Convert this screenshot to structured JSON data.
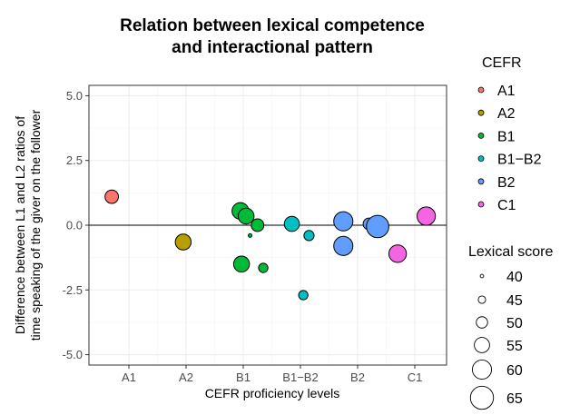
{
  "chart_data": {
    "type": "scatter",
    "title_lines": [
      "Relation between lexical competence",
      "and interactional pattern"
    ],
    "xlabel": "CEFR proficiency levels",
    "ylabel_lines": [
      "Difference between L1 and L2 ratios of",
      "time speaking of the giver on the follower"
    ],
    "categories": [
      "A1",
      "A2",
      "B1",
      "B1−B2",
      "B2",
      "C1"
    ],
    "ylim": [
      -5.4,
      5.4
    ],
    "yticks": [
      5.0,
      2.5,
      0.0,
      -2.5,
      -5.0
    ],
    "ytick_labels": [
      "5.0",
      "2.5",
      "0.0",
      "-2.5",
      "-5.0"
    ],
    "reference_line_y": 0.0,
    "grid": true,
    "legend_position": "right",
    "color_legend": {
      "title": "CEFR",
      "entries": [
        {
          "label": "A1",
          "color": "#F8766D"
        },
        {
          "label": "A2",
          "color": "#B79F00"
        },
        {
          "label": "B1",
          "color": "#00BA38"
        },
        {
          "label": "B1−B2",
          "color": "#00BFC4"
        },
        {
          "label": "B2",
          "color": "#619CFF"
        },
        {
          "label": "C1",
          "color": "#F564E3"
        }
      ]
    },
    "size_legend": {
      "title": "Lexical score",
      "values": [
        40,
        45,
        50,
        55,
        60,
        65
      ]
    },
    "points": [
      {
        "level": "A1",
        "x": 0.7,
        "y": 1.1,
        "lexical_score": 52
      },
      {
        "level": "A2",
        "x": 1.95,
        "y": -0.65,
        "lexical_score": 55
      },
      {
        "level": "B1",
        "x": 2.95,
        "y": 0.55,
        "lexical_score": 56
      },
      {
        "level": "B1",
        "x": 3.05,
        "y": 0.35,
        "lexical_score": 55
      },
      {
        "level": "B1",
        "x": 3.25,
        "y": 0.0,
        "lexical_score": 51
      },
      {
        "level": "B1",
        "x": 3.12,
        "y": -0.4,
        "lexical_score": 40
      },
      {
        "level": "B1",
        "x": 2.97,
        "y": -1.5,
        "lexical_score": 55
      },
      {
        "level": "B1",
        "x": 3.35,
        "y": -1.65,
        "lexical_score": 47
      },
      {
        "level": "B1−B2",
        "x": 3.85,
        "y": 0.05,
        "lexical_score": 54
      },
      {
        "level": "B1−B2",
        "x": 4.15,
        "y": -0.4,
        "lexical_score": 48
      },
      {
        "level": "B1−B2",
        "x": 4.05,
        "y": -2.7,
        "lexical_score": 47
      },
      {
        "level": "B2",
        "x": 4.75,
        "y": 0.15,
        "lexical_score": 59
      },
      {
        "level": "B2",
        "x": 5.2,
        "y": 0.05,
        "lexical_score": 50
      },
      {
        "level": "B2",
        "x": 5.35,
        "y": -0.05,
        "lexical_score": 63
      },
      {
        "level": "B2",
        "x": 4.75,
        "y": -0.8,
        "lexical_score": 59
      },
      {
        "level": "C1",
        "x": 6.2,
        "y": 0.35,
        "lexical_score": 58
      },
      {
        "level": "C1",
        "x": 5.7,
        "y": -1.1,
        "lexical_score": 57
      }
    ]
  }
}
